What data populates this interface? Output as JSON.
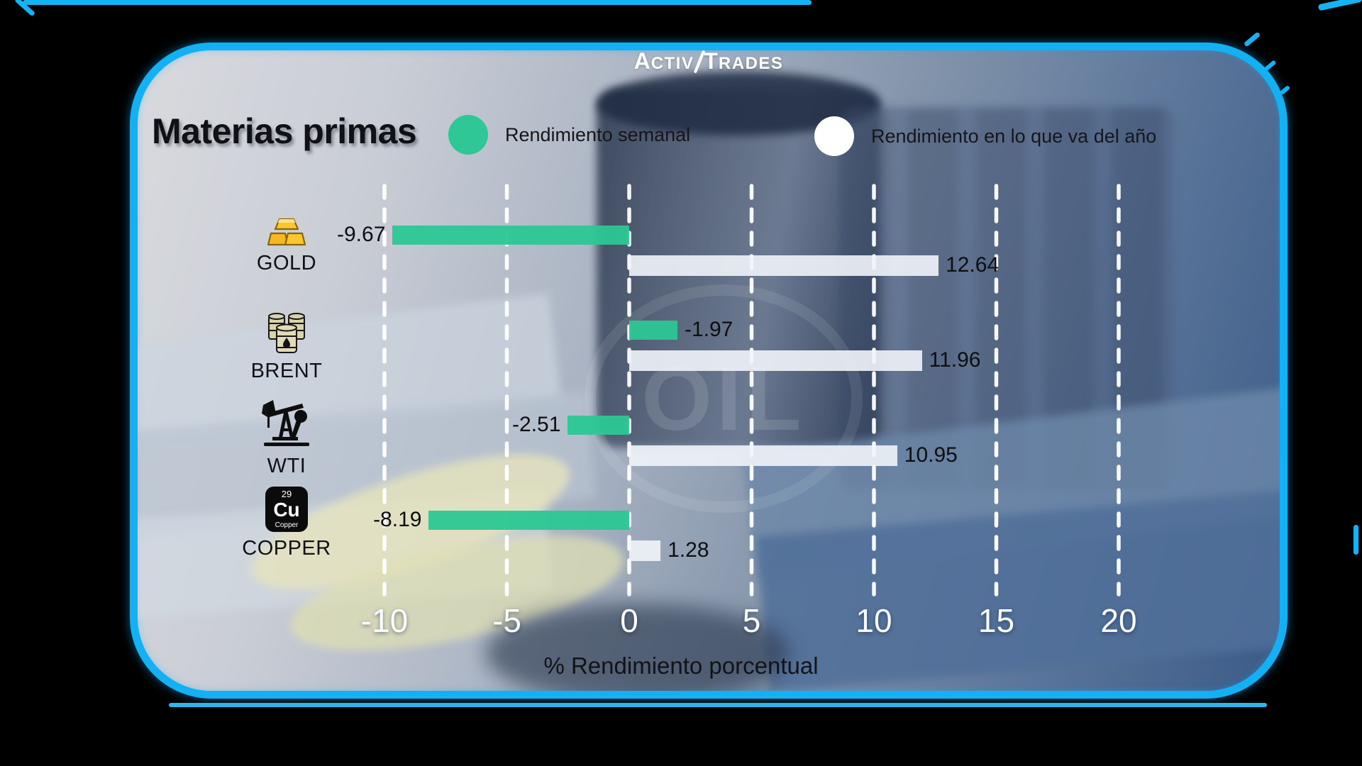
{
  "brand": {
    "logo": {
      "a1": "A",
      "rest1": "CTIV",
      "a2": "T",
      "rest2": "RADES"
    }
  },
  "header": {
    "title": "Materias primas"
  },
  "legend": {
    "items": [
      {
        "label": "Rendimiento semanal",
        "color": "#2fc795",
        "swatch": "green-circle"
      },
      {
        "label": "Rendimiento en lo que va del año",
        "color": "#ffffff",
        "swatch": "white-circle"
      }
    ]
  },
  "chart_data": {
    "type": "bar",
    "orientation": "horizontal",
    "categories": [
      "GOLD",
      "BRENT",
      "WTI",
      "COPPER"
    ],
    "series": [
      {
        "name": "Rendimiento semanal",
        "color": "#2fc795",
        "values": [
          -9.67,
          -1.97,
          -2.51,
          -8.19
        ]
      },
      {
        "name": "Rendimiento en lo que va del año",
        "color": "#f1f4f9",
        "values": [
          12.64,
          11.96,
          10.95,
          1.28
        ]
      }
    ],
    "rows": [
      {
        "category": "GOLD",
        "icon": "gold-ingots-icon",
        "weekly": -9.67,
        "weekly_label": "-9.67",
        "ytd": 12.64,
        "ytd_label": "12.64",
        "weekly_drawn_positive": false
      },
      {
        "category": "BRENT",
        "icon": "oil-barrels-icon",
        "weekly": -1.97,
        "weekly_label": "-1.97",
        "ytd": 11.96,
        "ytd_label": "11.96",
        "weekly_drawn_positive": true
      },
      {
        "category": "WTI",
        "icon": "pump-jack-icon",
        "weekly": -2.51,
        "weekly_label": "-2.51",
        "ytd": 10.95,
        "ytd_label": "10.95",
        "weekly_drawn_positive": false
      },
      {
        "category": "COPPER",
        "icon": "copper-element-icon",
        "weekly": -8.19,
        "weekly_label": "-8.19",
        "ytd": 1.28,
        "ytd_label": "1.28",
        "weekly_drawn_positive": false
      }
    ],
    "xticks": [
      -10,
      -5,
      0,
      5,
      10,
      15,
      20
    ],
    "xtick_labels": [
      "-10",
      "-5",
      "0",
      "5",
      "10",
      "15",
      "20"
    ],
    "xlabel": "% Rendimiento porcentual",
    "xlim": [
      -12.5,
      23.5
    ],
    "grid": "vertical-dashed-white",
    "legend_position": "top"
  },
  "copper_badge": {
    "number": "29",
    "symbol": "Cu",
    "name": "Copper"
  },
  "background": {
    "watermark": "OIL"
  },
  "colors": {
    "card_border": "#13b0f4",
    "weekly_bar": "#2fc795",
    "ytd_bar": "#f1f4f9",
    "canvas": "#000000"
  }
}
